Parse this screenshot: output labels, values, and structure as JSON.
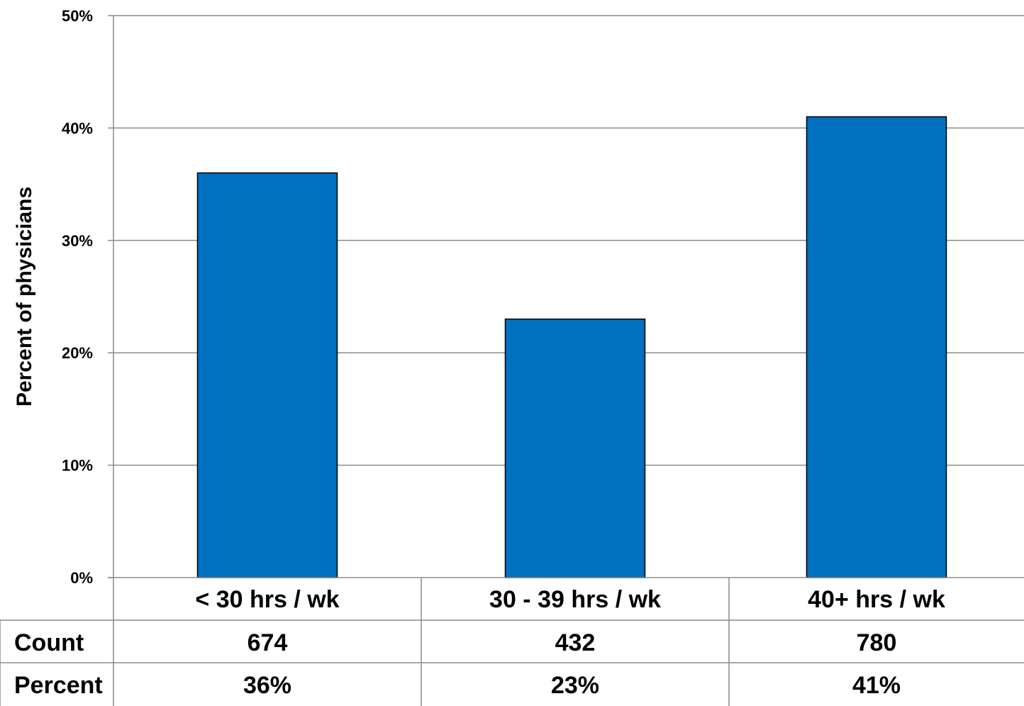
{
  "chart_data": {
    "type": "bar",
    "categories": [
      "< 30 hrs / wk",
      "30 - 39 hrs / wk",
      "40+ hrs / wk"
    ],
    "values": [
      36,
      23,
      41
    ],
    "ylabel": "Percent of physicians",
    "ylim": [
      0,
      50
    ],
    "yticks": [
      "0%",
      "10%",
      "20%",
      "30%",
      "40%",
      "50%"
    ],
    "grid": true,
    "bar_color": "#0070C0",
    "table": {
      "rows": [
        {
          "label": "Count",
          "cells": [
            "674",
            "432",
            "780"
          ]
        },
        {
          "label": "Percent",
          "cells": [
            "36%",
            "23%",
            "41%"
          ]
        }
      ]
    }
  }
}
